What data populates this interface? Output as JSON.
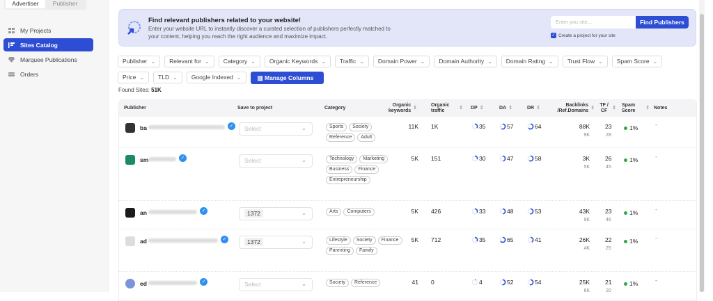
{
  "sidebar": {
    "modes": [
      "Advertiser",
      "Publisher"
    ],
    "active_mode": "Advertiser",
    "items": [
      {
        "label": "My Projects",
        "icon": "grid-icon"
      },
      {
        "label": "Sites Catalog",
        "icon": "list-icon",
        "active": true
      },
      {
        "label": "Marquee Publications",
        "icon": "gem-icon"
      },
      {
        "label": "Orders",
        "icon": "card-icon"
      }
    ]
  },
  "banner": {
    "title": "Find relevant publishers related to your website!",
    "text": "Enter your website URL to instantly discover a curated selection of publishers perfectly matched to your content, helping you reach the right audience and maximize impact.",
    "placeholder": "Enter you site...",
    "button": "Find Publishers",
    "checkbox_label": "Create a project for your site",
    "checked": true
  },
  "filters": {
    "row1": [
      "Publisher",
      "Relevant for",
      "Category",
      "Organic Keywords",
      "Traffic",
      "Domain Power",
      "Domain Authority",
      "Domain Rating",
      "Trust Flow",
      "Spam Score"
    ],
    "row2": [
      "Price",
      "TLD",
      "Google Indexed"
    ],
    "manage_columns": "Manage Columns"
  },
  "found": {
    "label": "Found Sites:",
    "value": "51K"
  },
  "table": {
    "headers": [
      "Publisher",
      "Save to project",
      "Category",
      "Organic keywords",
      "Organic traffic",
      "DP",
      "DA",
      "DR",
      "Backlinks /Ref.Domains",
      "TF / CF",
      "Spam Score",
      "Notes"
    ],
    "accent": "#2d4ed4",
    "rows": [
      {
        "name": "ba",
        "project": "Select",
        "categories": [
          "Sports",
          "Society",
          "Reference",
          "Adult"
        ],
        "kw": "11K",
        "traffic": "1K",
        "dp": 35,
        "da": 57,
        "dr": 64,
        "backlinks": "88K",
        "refdomains": "9K",
        "tf": "23",
        "cf": "28",
        "spam": "1%",
        "notes": "-"
      },
      {
        "name": "sm",
        "project": "Select",
        "categories": [
          "Technology",
          "Marketing",
          "Business",
          "Finance",
          "Entrepreneurship"
        ],
        "kw": "5K",
        "traffic": "151",
        "dp": 30,
        "da": 47,
        "dr": 58,
        "backlinks": "3K",
        "refdomains": "5K",
        "tf": "26",
        "cf": "45",
        "spam": "1%",
        "notes": "-"
      },
      {
        "name": "an",
        "project": "1372",
        "categories": [
          "Arts",
          "Computers"
        ],
        "kw": "5K",
        "traffic": "426",
        "dp": 33,
        "da": 48,
        "dr": 53,
        "backlinks": "43K",
        "refdomains": "9K",
        "tf": "23",
        "cf": "46",
        "spam": "1%",
        "notes": "-"
      },
      {
        "name": "ad",
        "project": "1372",
        "categories": [
          "Lifestyle",
          "Society",
          "Finance",
          "Parenting",
          "Family"
        ],
        "kw": "5K",
        "traffic": "712",
        "dp": 35,
        "da": 65,
        "dr": 41,
        "backlinks": "26K",
        "refdomains": "4K",
        "tf": "22",
        "cf": "25",
        "spam": "1%",
        "notes": "-"
      },
      {
        "name": "ed",
        "project": "Select",
        "categories": [
          "Society",
          "Reference"
        ],
        "kw": "41",
        "traffic": "0",
        "dp": 4,
        "da": 52,
        "dr": 54,
        "backlinks": "25K",
        "refdomains": "6K",
        "tf": "21",
        "cf": "20",
        "spam": "1%",
        "notes": "-"
      }
    ]
  }
}
